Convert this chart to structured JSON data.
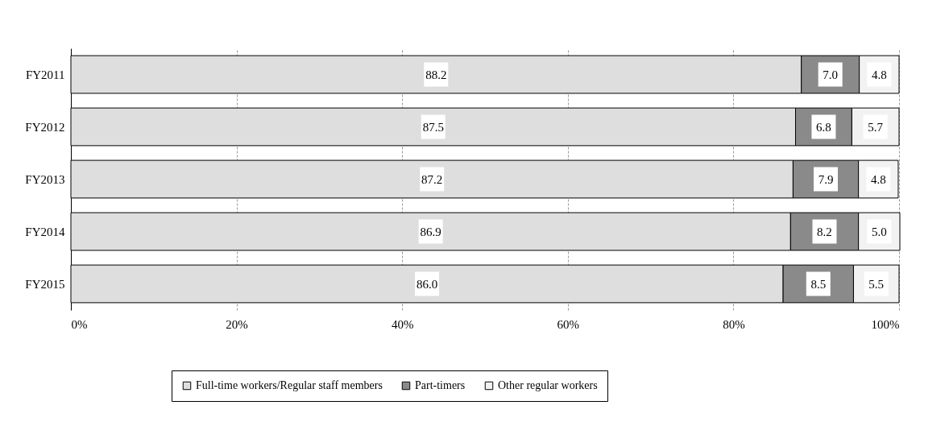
{
  "chart_data": {
    "type": "bar",
    "orientation": "horizontal",
    "stacked": true,
    "categories": [
      "FY2011",
      "FY2012",
      "FY2013",
      "FY2014",
      "FY2015"
    ],
    "series": [
      {
        "name": "Full-time workers/Regular staff members",
        "color": "#dedede",
        "values": [
          88.2,
          87.5,
          87.2,
          86.9,
          86.0
        ],
        "value_labels": [
          "88.2",
          "87.5",
          "87.2",
          "86.9",
          "86.0"
        ]
      },
      {
        "name": "Part-timers",
        "color": "#8a8a8a",
        "values": [
          7.0,
          6.8,
          7.9,
          8.2,
          8.5
        ],
        "value_labels": [
          "7.0",
          "6.8",
          "7.9",
          "8.2",
          "8.5"
        ]
      },
      {
        "name": "Other regular workers",
        "color": "#f2f2f2",
        "values": [
          4.8,
          5.7,
          4.8,
          5.0,
          5.5
        ],
        "value_labels": [
          "4.8",
          "5.7",
          "4.8",
          "5.0",
          "5.5"
        ]
      }
    ],
    "xlim": [
      0,
      100
    ],
    "xticks": [
      {
        "value": 0,
        "label": "0%"
      },
      {
        "value": 20,
        "label": "20%"
      },
      {
        "value": 40,
        "label": "40%"
      },
      {
        "value": 60,
        "label": "60%"
      },
      {
        "value": 80,
        "label": "80%"
      },
      {
        "value": 100,
        "label": "100%"
      }
    ],
    "grid": "x",
    "legend": "bottom"
  }
}
